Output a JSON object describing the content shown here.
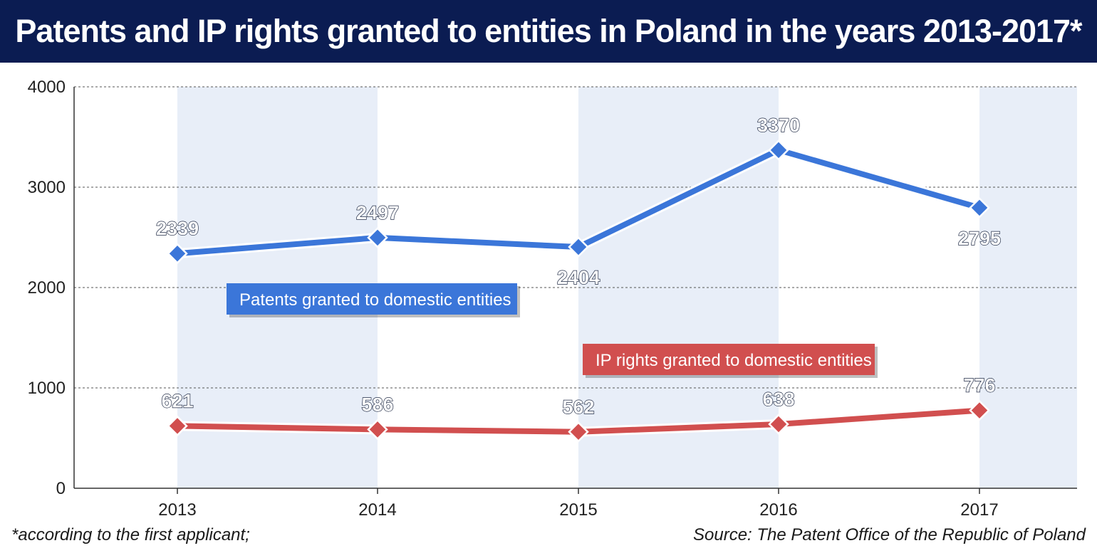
{
  "header": {
    "title": "Patents and IP rights granted to entities in Poland in the years 2013-2017*"
  },
  "footer": {
    "footnote": "*according to the first applicant;",
    "source": "Source: The Patent Office of the Republic of Poland"
  },
  "colors": {
    "title_bg": "#0b1c52",
    "band": "#e8eef8",
    "patents": "#3b76d9",
    "ip_rights": "#d14f4f",
    "label_outline": "#ffffff",
    "label_text_shadow": "#1f2a44"
  },
  "chart_data": {
    "type": "line",
    "categories": [
      "2013",
      "2014",
      "2015",
      "2016",
      "2017"
    ],
    "ylim": [
      0,
      4000
    ],
    "yticks": [
      0,
      1000,
      2000,
      3000,
      4000
    ],
    "grid": true,
    "series": [
      {
        "name": "Patents granted to domestic entities",
        "color": "#3b76d9",
        "values": [
          2339,
          2497,
          2404,
          3370,
          2795
        ],
        "label_positions": [
          "above",
          "above",
          "below",
          "above",
          "below"
        ]
      },
      {
        "name": "IP rights granted to domestic entities",
        "color": "#d14f4f",
        "values": [
          621,
          586,
          562,
          638,
          776
        ],
        "label_positions": [
          "above",
          "above",
          "above",
          "above",
          "above"
        ]
      }
    ]
  }
}
